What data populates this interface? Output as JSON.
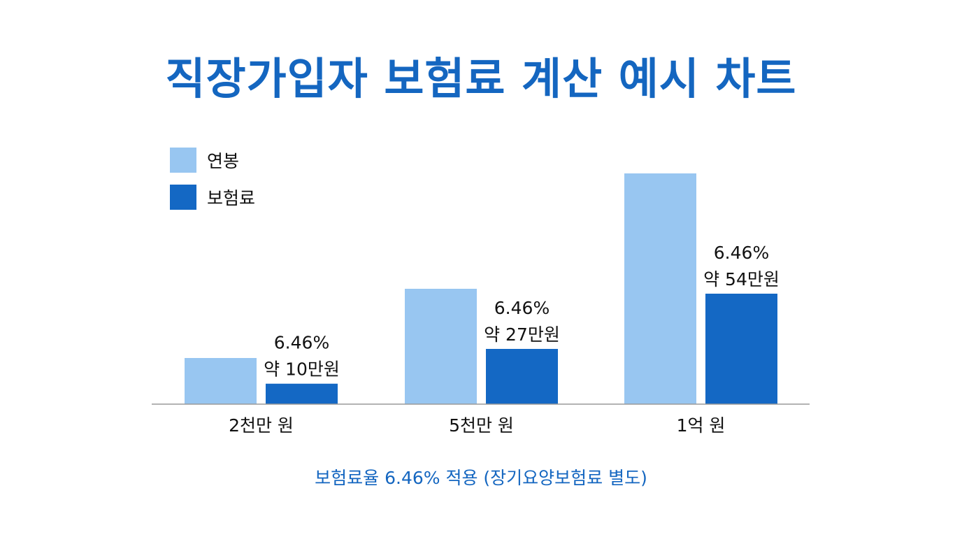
{
  "chart_data": {
    "type": "bar",
    "title": "직장가입자 보험료 계산 예시 차트",
    "footnote": "보험료율 6.46% 적용 (장기요양보험료 별도)",
    "categories": [
      "2천만 원",
      "5천만 원",
      "1억 원"
    ],
    "legend_position": "top-left",
    "grid": false,
    "series": [
      {
        "name": "연봉",
        "color": "#98c6f1",
        "values": [
          20000000,
          50000000,
          100000000
        ]
      },
      {
        "name": "보험료",
        "color": "#1468c4",
        "values": [
          100000,
          270000,
          540000
        ],
        "labels": [
          [
            "6.46%",
            "약 10만원"
          ],
          [
            "6.46%",
            "약 27만원"
          ],
          [
            "6.46%",
            "약 54만원"
          ]
        ]
      }
    ]
  }
}
